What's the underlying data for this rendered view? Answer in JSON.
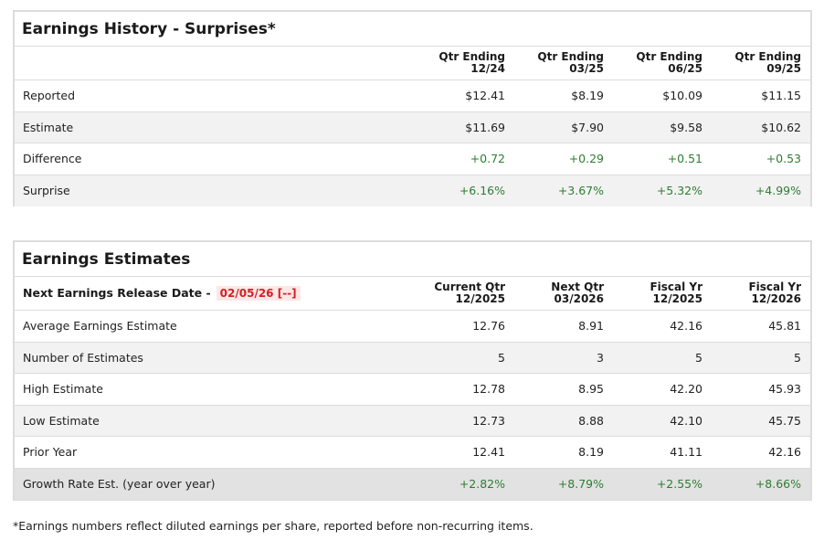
{
  "history": {
    "title": "Earnings History - Surprises*",
    "columns": [
      {
        "line1": "Qtr Ending",
        "line2": "12/24"
      },
      {
        "line1": "Qtr Ending",
        "line2": "03/25"
      },
      {
        "line1": "Qtr Ending",
        "line2": "06/25"
      },
      {
        "line1": "Qtr Ending",
        "line2": "09/25"
      }
    ],
    "rows": [
      {
        "label": "Reported",
        "values": [
          "$12.41",
          "$8.19",
          "$10.09",
          "$11.15"
        ]
      },
      {
        "label": "Estimate",
        "values": [
          "$11.69",
          "$7.90",
          "$9.58",
          "$10.62"
        ]
      },
      {
        "label": "Difference",
        "values": [
          "+0.72",
          "+0.29",
          "+0.51",
          "+0.53"
        ]
      },
      {
        "label": "Surprise",
        "values": [
          "+6.16%",
          "+3.67%",
          "+5.32%",
          "+4.99%"
        ]
      }
    ]
  },
  "estimates": {
    "title": "Earnings Estimates",
    "release_label": "Next Earnings Release Date -",
    "release_date": "02/05/26 [--]",
    "columns": [
      {
        "line1": "Current Qtr",
        "line2": "12/2025"
      },
      {
        "line1": "Next Qtr",
        "line2": "03/2026"
      },
      {
        "line1": "Fiscal Yr",
        "line2": "12/2025"
      },
      {
        "line1": "Fiscal Yr",
        "line2": "12/2026"
      }
    ],
    "rows": [
      {
        "label": "Average Earnings Estimate",
        "values": [
          "12.76",
          "8.91",
          "42.16",
          "45.81"
        ]
      },
      {
        "label": "Number of Estimates",
        "values": [
          "5",
          "3",
          "5",
          "5"
        ]
      },
      {
        "label": "High Estimate",
        "values": [
          "12.78",
          "8.95",
          "42.20",
          "45.93"
        ]
      },
      {
        "label": "Low Estimate",
        "values": [
          "12.73",
          "8.88",
          "42.10",
          "45.75"
        ]
      },
      {
        "label": "Prior Year",
        "values": [
          "12.41",
          "8.19",
          "41.11",
          "42.16"
        ]
      },
      {
        "label": "Growth Rate Est. (year over year)",
        "values": [
          "+2.82%",
          "+8.79%",
          "+2.55%",
          "+8.66%"
        ]
      }
    ]
  },
  "footnote": "*Earnings numbers reflect diluted earnings per share, reported before non-recurring items.",
  "colors": {
    "positive": "#2e7d32",
    "release_date_text": "#d32020",
    "release_date_bg": "#fde7e7",
    "border": "#dcdcdc",
    "alt_row": "#f2f2f2"
  }
}
